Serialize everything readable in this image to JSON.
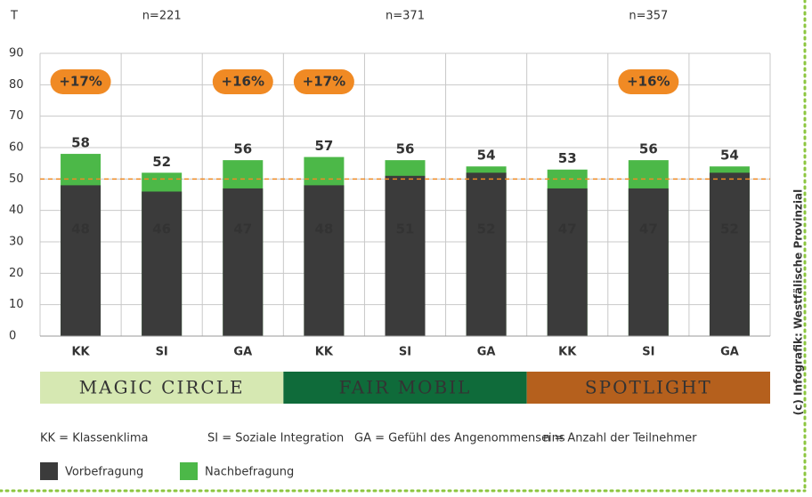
{
  "chart_data": {
    "type": "overlap_bar",
    "y_label": "T",
    "categories": [
      "KK",
      "SI",
      "GA",
      "KK",
      "SI",
      "GA",
      "KK",
      "SI",
      "GA"
    ],
    "series": [
      {
        "name": "Nachbefragung",
        "color": "#4cb848",
        "values": [
          58,
          52,
          56,
          57,
          56,
          54,
          53,
          56,
          54
        ]
      },
      {
        "name": "Vorbefragung",
        "color": "#3b3b3b",
        "values": [
          48,
          46,
          47,
          48,
          51,
          52,
          47,
          47,
          52
        ]
      }
    ],
    "annotations": [
      "+17%",
      null,
      "+16%",
      "+17%",
      null,
      null,
      null,
      "+16%",
      null
    ],
    "annotation_color": "#f08a24",
    "groups": [
      {
        "name": "MAGIC CIRCLE",
        "n": "n=221",
        "color": "#d6e8b2",
        "text_color": "#1d3a1d"
      },
      {
        "name": "FAIR MOBIL",
        "n": "n=371",
        "color": "#0f6b3a",
        "text_color": "#ffffff"
      },
      {
        "name": "SPOTLIGHT",
        "n": "n=357",
        "color": "#b5601d",
        "text_color": "#ffffff"
      }
    ],
    "reference_line": 50,
    "reference_color": "#f08a24",
    "ylim": [
      0,
      90
    ],
    "yticks": [
      0,
      10,
      20,
      30,
      40,
      50,
      60,
      70,
      80,
      90
    ],
    "grid": true,
    "key": [
      "KK = Klassenklima",
      "SI = Soziale Integration",
      "GA = Gefühl des Angenommenseins"
    ],
    "n_note": "n = Anzahl der Teilnehmer",
    "credit": "(c) Infografik: Westfälische Provinzial"
  }
}
